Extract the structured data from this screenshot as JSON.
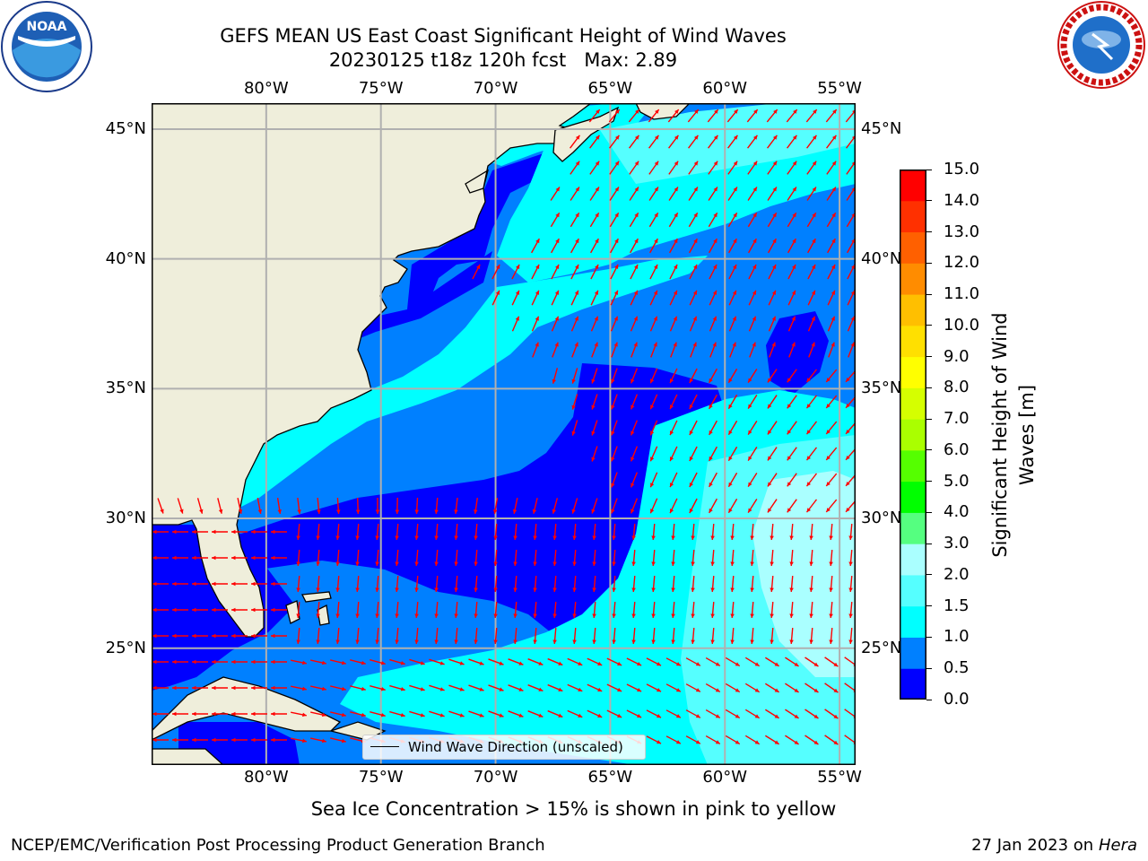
{
  "title_line1": "GEFS MEAN US East Coast Significant Height of Wind Waves",
  "title_line2": "20230125 t18z 120h fcst   Max: 2.89",
  "logos": {
    "left": {
      "name": "NOAA",
      "ring_text": "NATIONAL OCEANIC AND ATMOSPHERIC ADMINISTRATION · U.S. DEPARTMENT OF COMMERCE",
      "center_text": "NOAA"
    },
    "right": {
      "name": "National Weather Service",
      "ring_text": "NATIONAL WEATHER SERVICE"
    }
  },
  "map": {
    "lon_labels": [
      "80°W",
      "75°W",
      "70°W",
      "65°W",
      "60°W",
      "55°W"
    ],
    "lat_labels": [
      "45°N",
      "40°N",
      "35°N",
      "30°N",
      "25°N"
    ],
    "lon_range": [
      -85,
      -54.3
    ],
    "lat_range": [
      20.5,
      46
    ],
    "gridlines": true,
    "land_color": "#efeedb",
    "arrow_color": "#ff0000"
  },
  "legend": {
    "label": "Wind Wave Direction (unscaled)"
  },
  "colorbar": {
    "label": "Significant Height of Wind Waves [m]",
    "label_line1": "Significant Height of Wind",
    "label_line2": "Waves [m]",
    "ticks": [
      "0.0",
      "0.5",
      "1.0",
      "1.5",
      "2.0",
      "3.0",
      "4.0",
      "5.0",
      "6.0",
      "7.0",
      "8.0",
      "9.0",
      "10.0",
      "11.0",
      "12.0",
      "13.0",
      "14.0",
      "15.0"
    ],
    "colors": [
      "#0000ff",
      "#0080ff",
      "#00ffff",
      "#55ffff",
      "#aaffff",
      "#55ff80",
      "#00ff00",
      "#55ff00",
      "#aaff00",
      "#d5ff00",
      "#ffff00",
      "#ffe000",
      "#ffbf00",
      "#ff8c00",
      "#ff6000",
      "#ff3000",
      "#ff0000"
    ]
  },
  "note": "Sea Ice Concentration > 15% is shown in pink to yellow",
  "footer_left": "NCEP/EMC/Verification Post Processing Product Generation Branch",
  "footer_date": "27 Jan 2023 on ",
  "footer_machine": "Hera"
}
